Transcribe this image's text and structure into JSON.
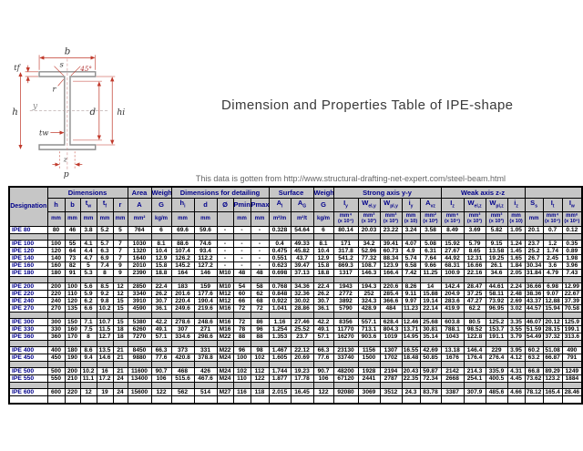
{
  "page": {
    "title": "Dimension and Properties Table of IPE-shape",
    "caption": "This data is gotten from http://www.structural-drafting-net-expert.com/steel-beam.html"
  },
  "colors": {
    "header_bg": "#c6c6c6",
    "header_text": "#00008b",
    "designation_text": "#00008b",
    "body_text": "#000000",
    "separator_bg": "#c6c6c6",
    "title_text": "#3a3a3a",
    "caption_text": "#666666",
    "dimension_red": "#c0392b",
    "beam_gray": "#8f8f8f"
  },
  "diagram": {
    "label_b": "b",
    "label_s": "s",
    "label_angle": "45°",
    "label_tf": "tf",
    "label_r": "r",
    "label_h": "h",
    "label_y": "y",
    "label_d": "d",
    "label_hi": "hi",
    "label_tw": "tw",
    "label_z": "z",
    "label_p": "p"
  },
  "table": {
    "designation_label": "Designation",
    "groups": [
      {
        "label": "Dimensions",
        "span": 5
      },
      {
        "label": "Area",
        "span": 1
      },
      {
        "label": "Weight",
        "span": 1
      },
      {
        "label": "Dimensions for detailing",
        "span": 5
      },
      {
        "label": "Surface",
        "span": 2
      },
      {
        "label": "Weight",
        "span": 1
      },
      {
        "label": "Strong axis y-y",
        "span": 5
      },
      {
        "label": "Weak axis z-z",
        "span": 4
      },
      {
        "label": "",
        "span": 3
      }
    ],
    "columns": [
      {
        "sym": "h",
        "unit": "mm",
        "mult": ""
      },
      {
        "sym": "b",
        "unit": "mm",
        "mult": ""
      },
      {
        "sym": "t<sub>w</sub>",
        "unit": "mm",
        "mult": ""
      },
      {
        "sym": "t<sub>f</sub>",
        "unit": "mm",
        "mult": ""
      },
      {
        "sym": "r",
        "unit": "mm",
        "mult": ""
      },
      {
        "sym": "A",
        "unit": "mm²",
        "mult": ""
      },
      {
        "sym": "G",
        "unit": "kg/m",
        "mult": ""
      },
      {
        "sym": "h<sub>i</sub>",
        "unit": "mm",
        "mult": ""
      },
      {
        "sym": "d",
        "unit": "mm",
        "mult": ""
      },
      {
        "sym": "Ø",
        "unit": "",
        "mult": ""
      },
      {
        "sym": "Pmin",
        "unit": "mm",
        "mult": ""
      },
      {
        "sym": "Pmax",
        "unit": "mm",
        "mult": ""
      },
      {
        "sym": "A<sub>l</sub>",
        "unit": "m²/m",
        "mult": ""
      },
      {
        "sym": "A<sub>G</sub>",
        "unit": "m²/t",
        "mult": ""
      },
      {
        "sym": "G",
        "unit": "kg/m",
        "mult": ""
      },
      {
        "sym": "I<sub>y</sub>",
        "unit": "mm⁴",
        "mult": "(x 10⁴)"
      },
      {
        "sym": "W<sub>el,y</sub>",
        "unit": "mm³",
        "mult": "(x 10³)"
      },
      {
        "sym": "W<sub>pl,y</sub>",
        "unit": "mm³",
        "mult": "(x 10³)"
      },
      {
        "sym": "i<sub>y</sub>",
        "unit": "mm",
        "mult": "(x 10)"
      },
      {
        "sym": "A<sub>vz</sub>",
        "unit": "mm²",
        "mult": "(x 10²)"
      },
      {
        "sym": "I<sub>z</sub>",
        "unit": "mm⁴",
        "mult": "(x 10⁴)"
      },
      {
        "sym": "W<sub>el,z</sub>",
        "unit": "mm³",
        "mult": "(x 10³)"
      },
      {
        "sym": "W<sub>pl,z</sub>",
        "unit": "mm³",
        "mult": "(x 10³)"
      },
      {
        "sym": "i<sub>z</sub>",
        "unit": "mm",
        "mult": "(x 10)"
      },
      {
        "sym": "S<sub>s</sub>",
        "unit": "mm",
        "mult": ""
      },
      {
        "sym": "I<sub>t</sub>",
        "unit": "mm⁴",
        "mult": "(x 10⁴)"
      },
      {
        "sym": "I<sub>w</sub>",
        "unit": "mm⁶",
        "mult": "(x 10⁹)"
      }
    ],
    "row_groups": [
      [
        {
          "name": "IPE 80",
          "values": [
            80,
            46,
            3.8,
            5.2,
            5,
            764,
            6,
            69.6,
            59.6,
            "-",
            "-",
            "-",
            0.328,
            54.64,
            6,
            80.14,
            20.03,
            23.22,
            3.24,
            3.58,
            8.49,
            3.69,
            5.82,
            1.05,
            20.1,
            0.7,
            0.12
          ]
        }
      ],
      [
        {
          "name": "IPE 100",
          "values": [
            100,
            55,
            4.1,
            5.7,
            7,
            1030,
            8.1,
            88.6,
            74.6,
            "-",
            "-",
            "-",
            0.4,
            49.33,
            8.1,
            171,
            34.2,
            39.41,
            4.07,
            5.08,
            15.92,
            5.79,
            9.15,
            1.24,
            23.7,
            1.2,
            0.35
          ]
        },
        {
          "name": "IPE 120",
          "values": [
            120,
            64,
            4.4,
            6.3,
            7,
            1320,
            10.4,
            107.4,
            93.4,
            "-",
            "-",
            "-",
            0.475,
            45.82,
            10.4,
            317.8,
            52.96,
            60.73,
            4.9,
            6.31,
            27.67,
            8.65,
            13.58,
            1.45,
            25.2,
            1.74,
            0.89
          ]
        },
        {
          "name": "IPE 140",
          "values": [
            140,
            73,
            4.7,
            6.9,
            7,
            1640,
            12.9,
            126.2,
            112.2,
            "-",
            "-",
            "-",
            0.551,
            43.7,
            12.9,
            541.2,
            77.32,
            88.34,
            5.74,
            7.64,
            44.92,
            12.31,
            19.25,
            1.65,
            26.7,
            2.45,
            1.98
          ]
        },
        {
          "name": "IPE 160",
          "values": [
            160,
            82,
            5,
            7.4,
            9,
            2010,
            15.8,
            145.2,
            127.2,
            "-",
            "-",
            "-",
            0.623,
            39.47,
            15.8,
            869.3,
            108.7,
            123.9,
            6.58,
            9.66,
            68.31,
            16.66,
            26.1,
            1.84,
            30.34,
            3.6,
            3.96
          ]
        },
        {
          "name": "IPE 180",
          "values": [
            180,
            91,
            5.3,
            8,
            9,
            2390,
            18.8,
            164,
            146,
            "M10",
            48,
            48,
            0.698,
            37.13,
            18.8,
            1317,
            146.3,
            166.4,
            7.42,
            11.25,
            100.9,
            22.16,
            34.6,
            2.05,
            31.84,
            4.79,
            7.43
          ]
        }
      ],
      [
        {
          "name": "IPE 200",
          "values": [
            200,
            100,
            5.6,
            8.5,
            12,
            2850,
            22.4,
            183,
            159,
            "M10",
            54,
            58,
            0.768,
            34.36,
            22.4,
            1943,
            194.3,
            220.6,
            8.26,
            14,
            142.4,
            28.47,
            44.61,
            2.24,
            36.66,
            6.98,
            12.99
          ]
        },
        {
          "name": "IPE 220",
          "values": [
            220,
            110,
            5.9,
            9.2,
            12,
            3340,
            26.2,
            201.6,
            177.6,
            "M12",
            60,
            62,
            0.848,
            32.36,
            26.2,
            2772,
            252,
            285.4,
            9.11,
            15.88,
            204.9,
            37.25,
            58.11,
            2.48,
            38.36,
            9.07,
            22.67
          ]
        },
        {
          "name": "IPE 240",
          "values": [
            240,
            120,
            6.2,
            9.8,
            15,
            3910,
            30.7,
            220.4,
            190.4,
            "M12",
            66,
            68,
            0.922,
            30.02,
            30.7,
            3892,
            324.3,
            366.6,
            9.97,
            19.14,
            283.6,
            47.27,
            73.92,
            2.69,
            43.37,
            12.88,
            37.39
          ]
        },
        {
          "name": "IPE 270",
          "values": [
            270,
            135,
            6.6,
            10.2,
            15,
            4590,
            36.1,
            249.6,
            219.6,
            "M16",
            72,
            72,
            1.041,
            28.86,
            36.1,
            5790,
            428.9,
            484,
            11.23,
            22.14,
            419.9,
            62.2,
            96.95,
            3.02,
            44.57,
            15.94,
            70.58
          ]
        }
      ],
      [
        {
          "name": "IPE 300",
          "values": [
            300,
            150,
            7.1,
            10.7,
            15,
            5380,
            42.2,
            278.6,
            248.6,
            "M16",
            72,
            86,
            1.16,
            27.46,
            42.2,
            8356,
            557.1,
            628.4,
            12.46,
            25.68,
            603.8,
            80.5,
            125.2,
            3.35,
            46.07,
            20.12,
            125.9
          ]
        },
        {
          "name": "IPE 330",
          "values": [
            330,
            160,
            7.5,
            11.5,
            18,
            6260,
            49.1,
            307,
            271,
            "M16",
            78,
            96,
            1.254,
            25.52,
            49.1,
            11770,
            713.1,
            804.3,
            13.71,
            30.81,
            788.1,
            98.52,
            153.7,
            3.55,
            51.59,
            28.15,
            199.1
          ]
        },
        {
          "name": "IPE 360",
          "values": [
            360,
            170,
            8,
            12.7,
            18,
            7270,
            57.1,
            334.6,
            298.6,
            "M22",
            88,
            88,
            1.353,
            23.7,
            57.1,
            16270,
            903.6,
            1019,
            14.95,
            35.14,
            1043,
            122.8,
            191.1,
            3.79,
            54.49,
            37.32,
            313.6
          ]
        }
      ],
      [
        {
          "name": "IPE 400",
          "values": [
            400,
            180,
            8.6,
            13.5,
            21,
            8450,
            66.3,
            373,
            331,
            "M22",
            96,
            98,
            1.467,
            22.12,
            66.3,
            23130,
            1156,
            1307,
            16.55,
            42.69,
            "13.18",
            146.4,
            229,
            3.95,
            60.2,
            51.08,
            490
          ]
        },
        {
          "name": "IPE 450",
          "values": [
            450,
            190,
            9.4,
            14.6,
            21,
            9880,
            77.6,
            420.8,
            378.8,
            "M24",
            100,
            102,
            1.605,
            20.69,
            77.6,
            33740,
            1500,
            1702,
            18.48,
            50.85,
            1676,
            176.4,
            276.4,
            4.12,
            63.2,
            66.87,
            791
          ]
        }
      ],
      [
        {
          "name": "IPE 500",
          "values": [
            500,
            200,
            10.2,
            16,
            21,
            11600,
            90.7,
            468,
            426,
            "M24",
            102,
            112,
            1.744,
            19.23,
            90.7,
            48200,
            1928,
            2194,
            20.43,
            59.87,
            2142,
            214.3,
            335.9,
            4.31,
            66.8,
            89.29,
            1249
          ]
        },
        {
          "name": "IPE 550",
          "values": [
            550,
            210,
            11.1,
            17.2,
            24,
            13400,
            106,
            515.6,
            467.6,
            "M24",
            110,
            122,
            1.877,
            17.78,
            106,
            67120,
            2441,
            2787,
            22.35,
            72.34,
            2668,
            254.1,
            400.5,
            4.45,
            73.62,
            123.2,
            1884
          ]
        }
      ],
      [
        {
          "name": "IPE 600",
          "values": [
            600,
            220,
            12,
            19,
            24,
            15600,
            122,
            562,
            514,
            "M27",
            116,
            118,
            2.015,
            16.45,
            122,
            92080,
            3069,
            3512,
            24.3,
            83.78,
            3387,
            307.9,
            485.6,
            4.66,
            78.12,
            165.4,
            28.46
          ]
        }
      ]
    ]
  }
}
